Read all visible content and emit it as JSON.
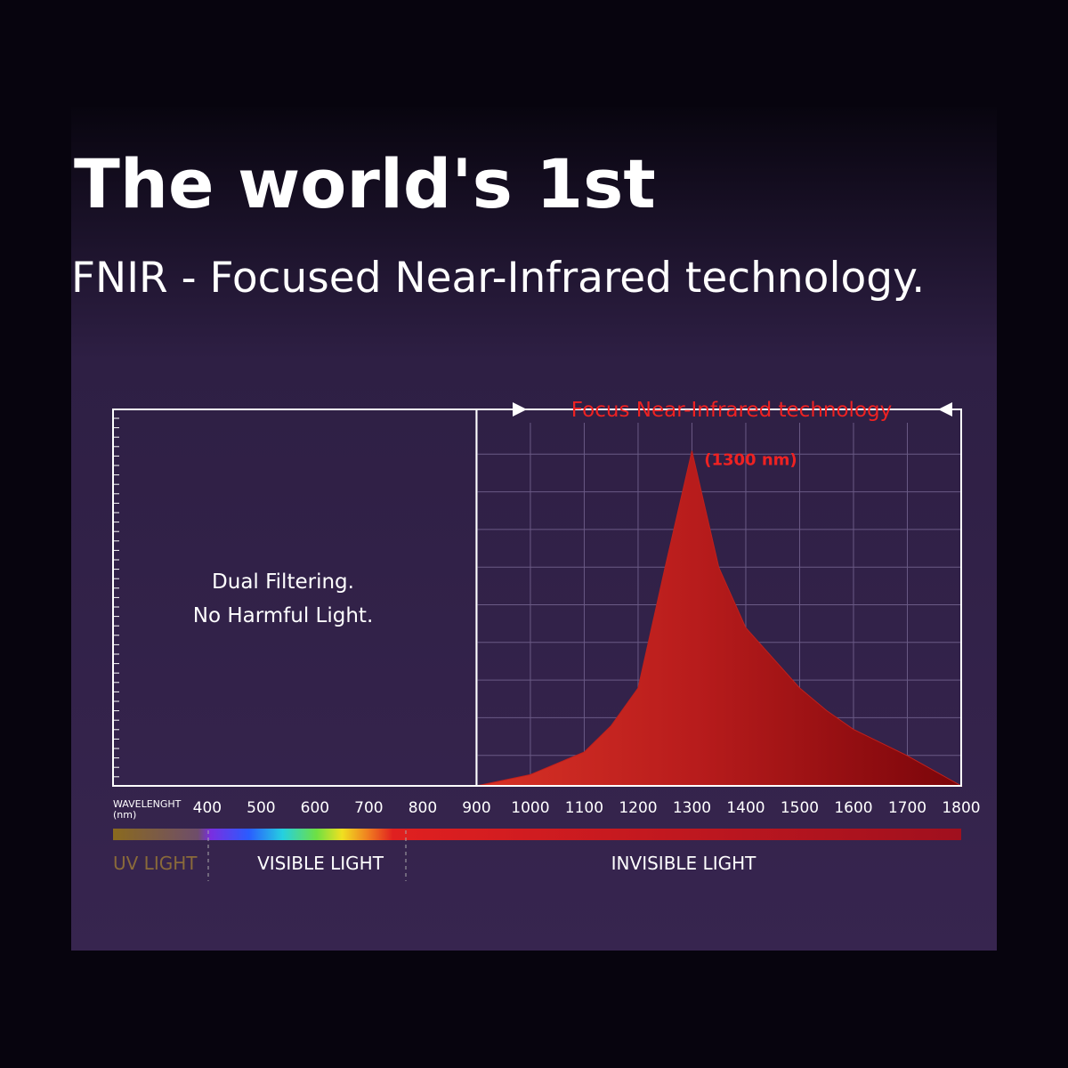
{
  "chart_data": {
    "type": "area",
    "title": "The world's 1st",
    "subtitle": "FNIR - Focused Near-Infrared technology.",
    "annotation": "Focus Near-Infrared technology",
    "peak_label": "(1300 nm)",
    "box_text": [
      "Dual Filtering.",
      "No Harmful Light."
    ],
    "x_label": [
      "WAVELENGHT",
      "(nm)"
    ],
    "bands": [
      "UV LIGHT",
      "VISIBLE LIGHT",
      "INVISIBLE LIGHT"
    ],
    "x": [
      900,
      1000,
      1100,
      1150,
      1200,
      1250,
      1300,
      1350,
      1400,
      1450,
      1500,
      1550,
      1600,
      1700,
      1800
    ],
    "values": [
      0,
      3,
      9,
      16,
      26,
      58,
      89,
      58,
      42,
      34,
      26,
      20,
      15,
      8,
      0
    ],
    "color": "#c0201c",
    "xlim": [
      225,
      1800
    ],
    "xticks": [
      400,
      500,
      600,
      700,
      800,
      900,
      1000,
      1100,
      1200,
      1300,
      1400,
      1500,
      1600,
      1700,
      1800
    ],
    "ylim": [
      0,
      100
    ],
    "grid": true
  }
}
